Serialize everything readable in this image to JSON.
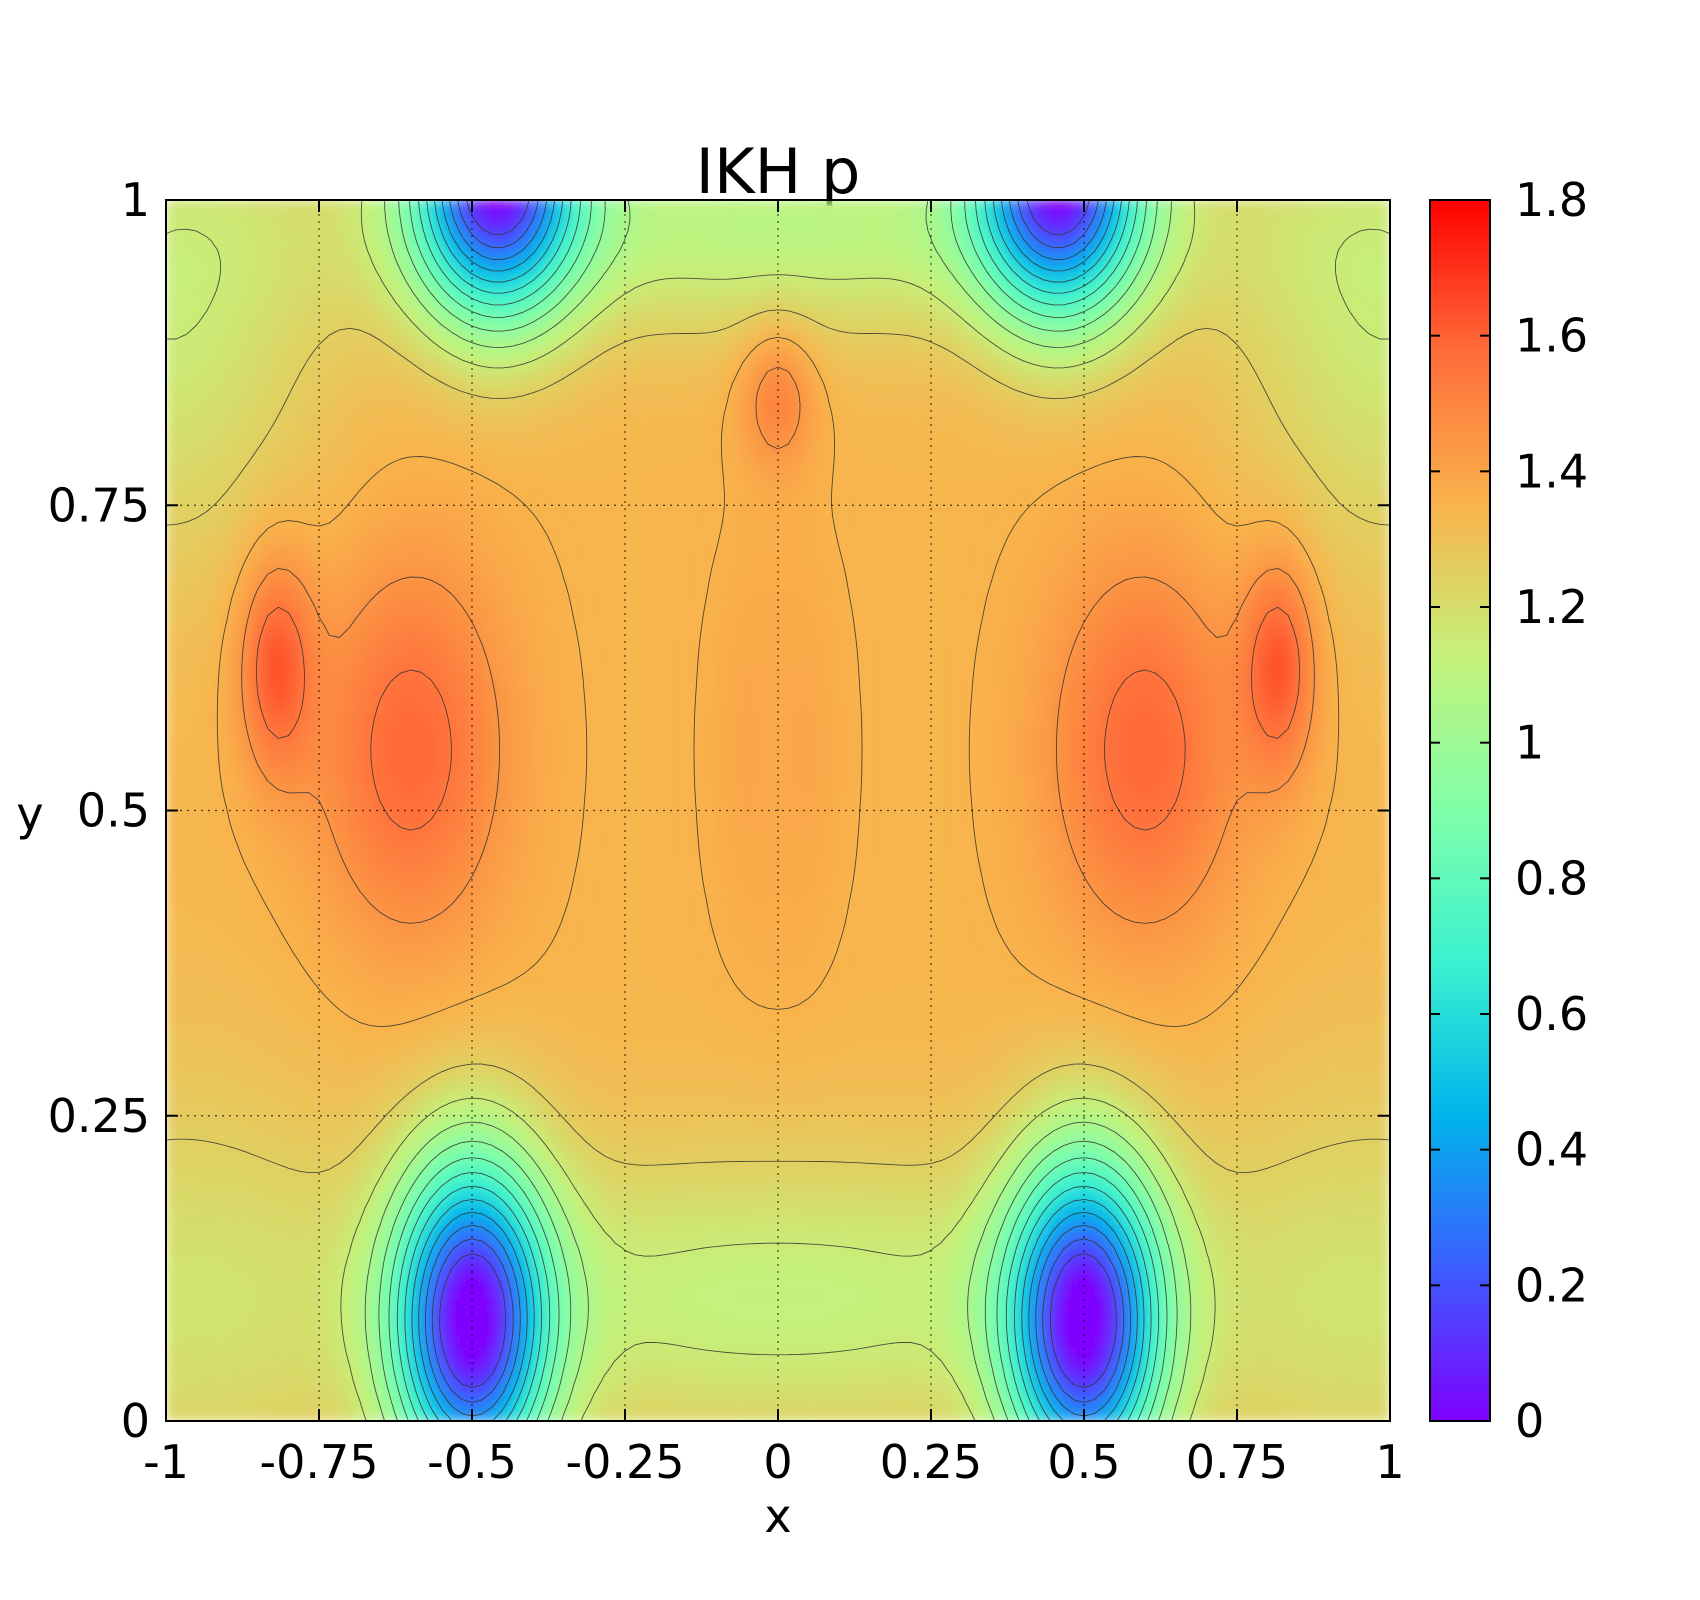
{
  "chart_data": {
    "type": "heatmap",
    "title": "IKH p",
    "xlabel": "x",
    "ylabel": "y",
    "xlim": [
      -1,
      1
    ],
    "ylim": [
      0,
      1
    ],
    "x_ticks": [
      -1,
      -0.75,
      -0.5,
      -0.25,
      0,
      0.25,
      0.5,
      0.75,
      1
    ],
    "x_tick_labels": [
      "-1",
      "-0.75",
      "-0.5",
      "-0.25",
      "0",
      "0.25",
      "0.5",
      "0.75",
      "1"
    ],
    "y_ticks": [
      0,
      0.25,
      0.5,
      0.75,
      1
    ],
    "y_tick_labels": [
      "0",
      "0.25",
      "0.5",
      "0.75",
      "1"
    ],
    "grid": true,
    "colormap": "rainbow",
    "colorbar": {
      "range": [
        0,
        1.8
      ],
      "ticks": [
        0,
        0.2,
        0.4,
        0.6,
        0.8,
        1,
        1.2,
        1.4,
        1.6,
        1.8
      ],
      "tick_labels": [
        "0",
        "0.2",
        "0.4",
        "0.6",
        "0.8",
        "1",
        "1.2",
        "1.4",
        "1.6",
        "1.8"
      ],
      "colors": [
        "#7f00ff",
        "#3c5dff",
        "#00b4ec",
        "#3af2d0",
        "#7fffa9",
        "#c4f27b",
        "#f9b34c",
        "#ff6d3a",
        "#ff0000"
      ]
    },
    "features": [
      {
        "kind": "minimum",
        "x": -0.46,
        "y": 1.0,
        "value": 0.15
      },
      {
        "kind": "minimum",
        "x": 0.46,
        "y": 1.0,
        "value": 0.15
      },
      {
        "kind": "minimum",
        "x": -0.5,
        "y": 0.07,
        "value": 0.08
      },
      {
        "kind": "minimum",
        "x": 0.5,
        "y": 0.07,
        "value": 0.08
      },
      {
        "kind": "maximum",
        "x": -0.6,
        "y": 0.55,
        "value": 1.6
      },
      {
        "kind": "maximum",
        "x": 0.6,
        "y": 0.55,
        "value": 1.6
      },
      {
        "kind": "maximum",
        "x": -0.82,
        "y": 0.62,
        "value": 1.62
      },
      {
        "kind": "maximum",
        "x": 0.82,
        "y": 0.62,
        "value": 1.62
      },
      {
        "kind": "maximum",
        "x": 0.0,
        "y": 0.85,
        "value": 1.55
      },
      {
        "kind": "plateau",
        "x": 0.0,
        "y": 0.55,
        "value": 1.3
      }
    ]
  }
}
